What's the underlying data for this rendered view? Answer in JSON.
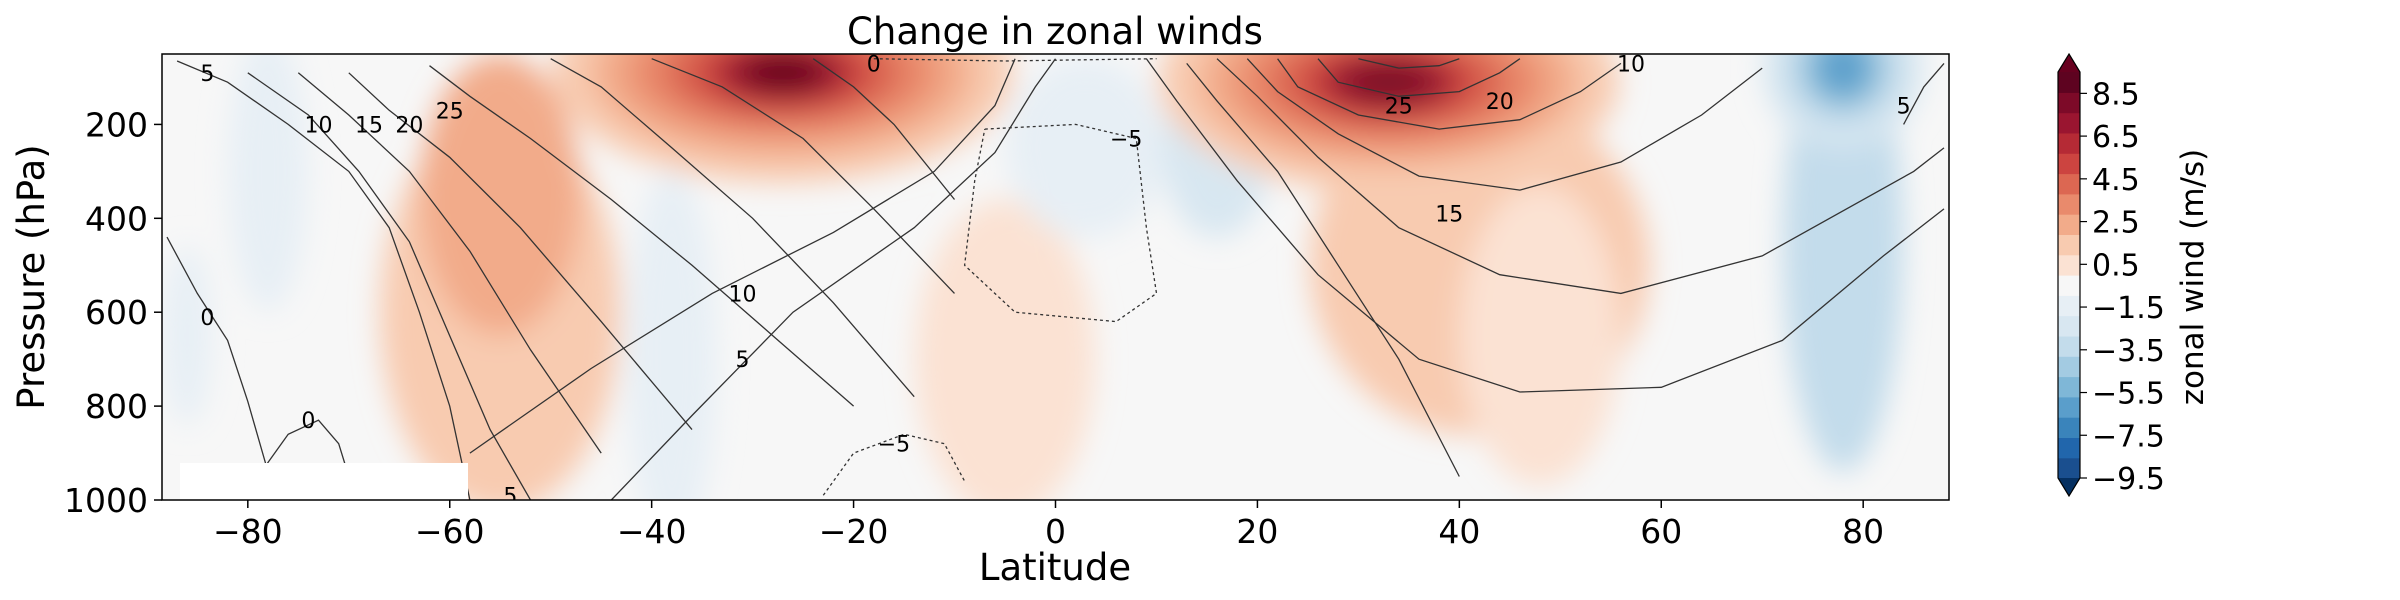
{
  "chart_data": {
    "type": "heatmap",
    "title": "Change in zonal winds",
    "xlabel": "Latitude",
    "ylabel": "Pressure (hPa)",
    "xlim": [
      -88.5,
      88.5
    ],
    "ylim": [
      1000,
      50
    ],
    "x_ticks": [
      -80,
      -60,
      -40,
      -20,
      0,
      20,
      40,
      60,
      80
    ],
    "x_tick_labels": [
      "−80",
      "−60",
      "−40",
      "−20",
      "0",
      "20",
      "40",
      "60",
      "80"
    ],
    "y_ticks": [
      200,
      400,
      600,
      800,
      1000
    ],
    "y_tick_labels": [
      "200",
      "400",
      "600",
      "800",
      "1000"
    ],
    "colorbar": {
      "label": "zonal wind (m/s)",
      "levels": [
        -9.5,
        -8.5,
        -7.5,
        -6.5,
        -5.5,
        -4.5,
        -3.5,
        -2.5,
        -1.5,
        -0.5,
        0.5,
        1.5,
        2.5,
        3.5,
        4.5,
        5.5,
        6.5,
        7.5,
        8.5,
        9.5
      ],
      "tick_values": [
        -9.5,
        -7.5,
        -5.5,
        -3.5,
        -1.5,
        0.5,
        2.5,
        4.5,
        6.5,
        8.5
      ],
      "tick_labels": [
        "−9.5",
        "−7.5",
        "−5.5",
        "−3.5",
        "−1.5",
        "0.5",
        "2.5",
        "4.5",
        "6.5",
        "8.5"
      ],
      "extend": "both",
      "colors": [
        "#1a4f8f",
        "#2166ac",
        "#3a84bb",
        "#5a9ecb",
        "#7fb7d7",
        "#a3cbe2",
        "#c3dceb",
        "#d8e7f1",
        "#e7eff5",
        "#f7f7f7",
        "#fbe2d3",
        "#f8cbb0",
        "#f2ab8a",
        "#e98a6c",
        "#dc6752",
        "#cc4440",
        "#b52a35",
        "#9a1530",
        "#7d0a28",
        "#5e0320"
      ],
      "under_color": "#053061",
      "over_color": "#67001f"
    },
    "shading_features": [
      {
        "name": "SH subtropical jet increase",
        "lat": -27,
        "p": 90,
        "value": 9.5
      },
      {
        "name": "NH subtropical jet increase",
        "lat": 33,
        "p": 110,
        "value": 9.0
      },
      {
        "name": "SH mid-latitude tropospheric increase",
        "lat": -55,
        "p": 600,
        "value": 2.0
      },
      {
        "name": "NH mid-latitude tropospheric increase",
        "lat": 42,
        "p": 500,
        "value": 1.5
      },
      {
        "name": "NH polar stratospheric decrease",
        "lat": 78,
        "p": 80,
        "value": -6.0
      },
      {
        "name": "NH polar column decrease",
        "lat": 78,
        "p": 450,
        "value": -3.0
      },
      {
        "name": "SH mid-latitude band decrease",
        "lat": -38,
        "p": 700,
        "value": -1.5
      },
      {
        "name": "Equatorial upper decrease",
        "lat": 3,
        "p": 250,
        "value": -1.5
      },
      {
        "name": "NH subtropical upper decrease",
        "lat": 16,
        "p": 250,
        "value": -2.0
      },
      {
        "name": "SH polar weak decrease",
        "lat": -78,
        "p": 300,
        "value": -1.0
      }
    ],
    "contours": {
      "description": "climatological zonal wind (m/s)",
      "labels": [
        {
          "text": "5",
          "lat": -84,
          "p": 90
        },
        {
          "text": "10",
          "lat": -73,
          "p": 200
        },
        {
          "text": "15",
          "lat": -68,
          "p": 200
        },
        {
          "text": "20",
          "lat": -64,
          "p": 200
        },
        {
          "text": "25",
          "lat": -60,
          "p": 170
        },
        {
          "text": "0",
          "lat": -18,
          "p": 70
        },
        {
          "text": "−5",
          "lat": 7,
          "p": 230
        },
        {
          "text": "25",
          "lat": 34,
          "p": 160
        },
        {
          "text": "20",
          "lat": 44,
          "p": 150
        },
        {
          "text": "10",
          "lat": 57,
          "p": 70
        },
        {
          "text": "15",
          "lat": 39,
          "p": 390
        },
        {
          "text": "5",
          "lat": 84,
          "p": 160
        },
        {
          "text": "10",
          "lat": -31,
          "p": 560
        },
        {
          "text": "5",
          "lat": -31,
          "p": 700
        },
        {
          "text": "0",
          "lat": -84,
          "p": 610
        },
        {
          "text": "0",
          "lat": -74,
          "p": 830
        },
        {
          "text": "−5",
          "lat": -16,
          "p": 880
        },
        {
          "text": "5",
          "lat": -54,
          "p": 990
        }
      ]
    }
  }
}
